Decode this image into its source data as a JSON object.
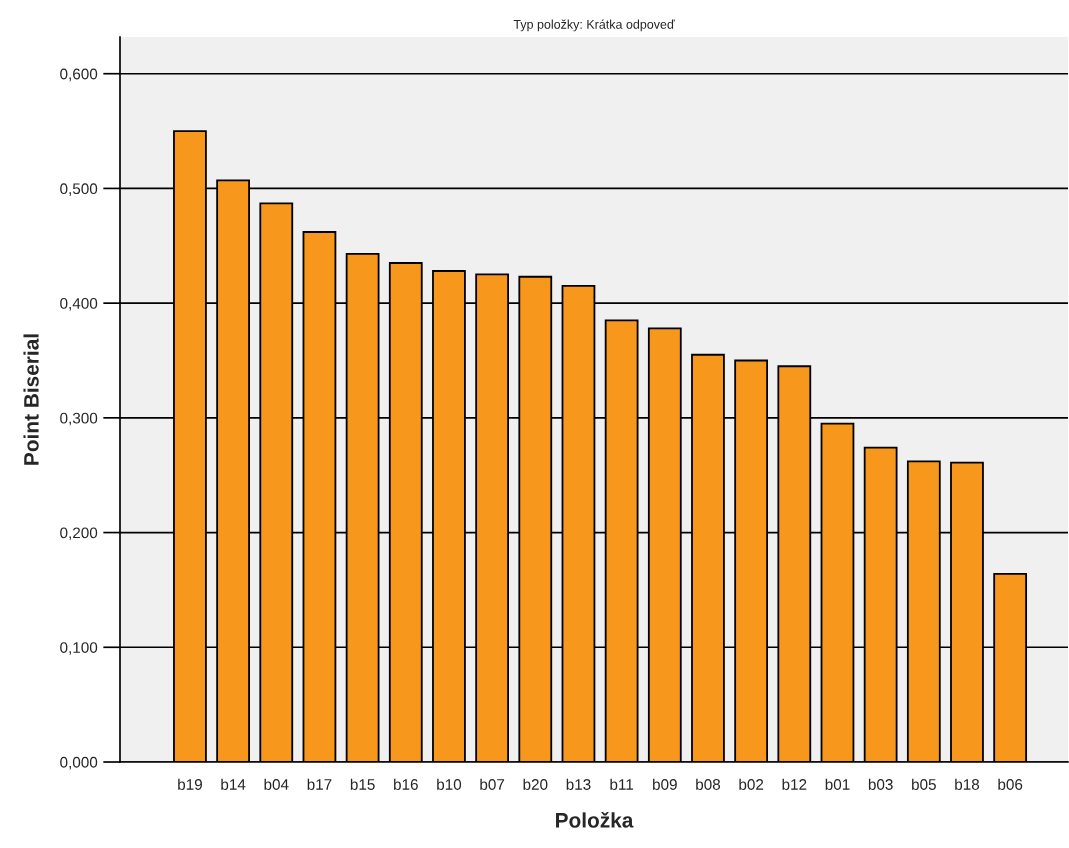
{
  "chart_data": {
    "type": "bar",
    "title": "Typ položky: Krátka odpoveď",
    "xlabel": "Položka",
    "ylabel": "Point Biserial",
    "categories": [
      "b19",
      "b14",
      "b04",
      "b17",
      "b15",
      "b16",
      "b10",
      "b07",
      "b20",
      "b13",
      "b11",
      "b09",
      "b08",
      "b02",
      "b12",
      "b01",
      "b03",
      "b05",
      "b18",
      "b06"
    ],
    "values": [
      0.55,
      0.507,
      0.487,
      0.462,
      0.443,
      0.435,
      0.428,
      0.425,
      0.423,
      0.415,
      0.385,
      0.378,
      0.355,
      0.35,
      0.345,
      0.295,
      0.274,
      0.262,
      0.261,
      0.164
    ],
    "color": "#f7981d",
    "ylim": [
      0,
      0.632
    ],
    "yticks": [
      {
        "value": 0,
        "label": "0,000"
      },
      {
        "value": 0.1,
        "label": "0,100"
      },
      {
        "value": 0.2,
        "label": "0,200"
      },
      {
        "value": 0.3,
        "label": "0,300"
      },
      {
        "value": 0.4,
        "label": "0,400"
      },
      {
        "value": 0.5,
        "label": "0,500"
      },
      {
        "value": 0.6,
        "label": "0,600"
      }
    ],
    "grid": "y"
  }
}
